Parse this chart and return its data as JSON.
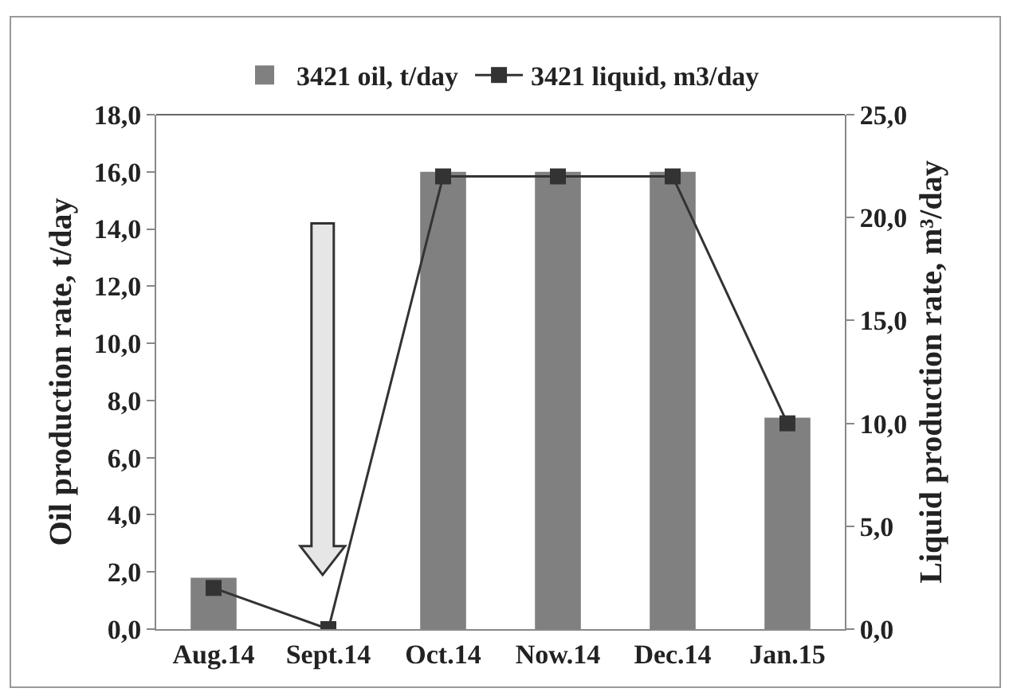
{
  "chart_data": {
    "type": "bar",
    "categories": [
      "Aug.14",
      "Sept.14",
      "Oct.14",
      "Now.14",
      "Dec.14",
      "Jan.15"
    ],
    "ylabel": "Oil production rate, t/day",
    "y2label": "Liquid production rate, m³/day",
    "series": [
      {
        "name": "3421 oil, t/day",
        "color": "#808080",
        "values": [
          1.8,
          0,
          16.0,
          16.0,
          16.0,
          7.4
        ]
      },
      {
        "name": "3421 liquid, m3/day",
        "type": "line",
        "axis": "y2",
        "color": "#333333",
        "marker": "square",
        "line_style": "solid",
        "values": [
          2.0,
          0,
          22.0,
          22.0,
          22.0,
          10.0
        ]
      }
    ],
    "ylim": [
      0,
      18
    ],
    "yticks": [
      {
        "value": 0,
        "label": "0,0"
      },
      {
        "value": 2,
        "label": "2,0"
      },
      {
        "value": 4,
        "label": "4,0"
      },
      {
        "value": 6,
        "label": "6,0"
      },
      {
        "value": 8,
        "label": "8,0"
      },
      {
        "value": 10,
        "label": "10,0"
      },
      {
        "value": 12,
        "label": "12,0"
      },
      {
        "value": 14,
        "label": "14,0"
      },
      {
        "value": 16,
        "label": "16,0"
      },
      {
        "value": 18,
        "label": "18,0"
      }
    ],
    "y2lim": [
      0,
      25
    ],
    "y2ticks": [
      {
        "value": 0,
        "label": "0,0"
      },
      {
        "value": 5,
        "label": "5,0"
      },
      {
        "value": 10,
        "label": "10,0"
      },
      {
        "value": 15,
        "label": "15,0"
      },
      {
        "value": 20,
        "label": "20,0"
      },
      {
        "value": 25,
        "label": "25,0"
      }
    ],
    "grid": false,
    "legend": "top"
  }
}
